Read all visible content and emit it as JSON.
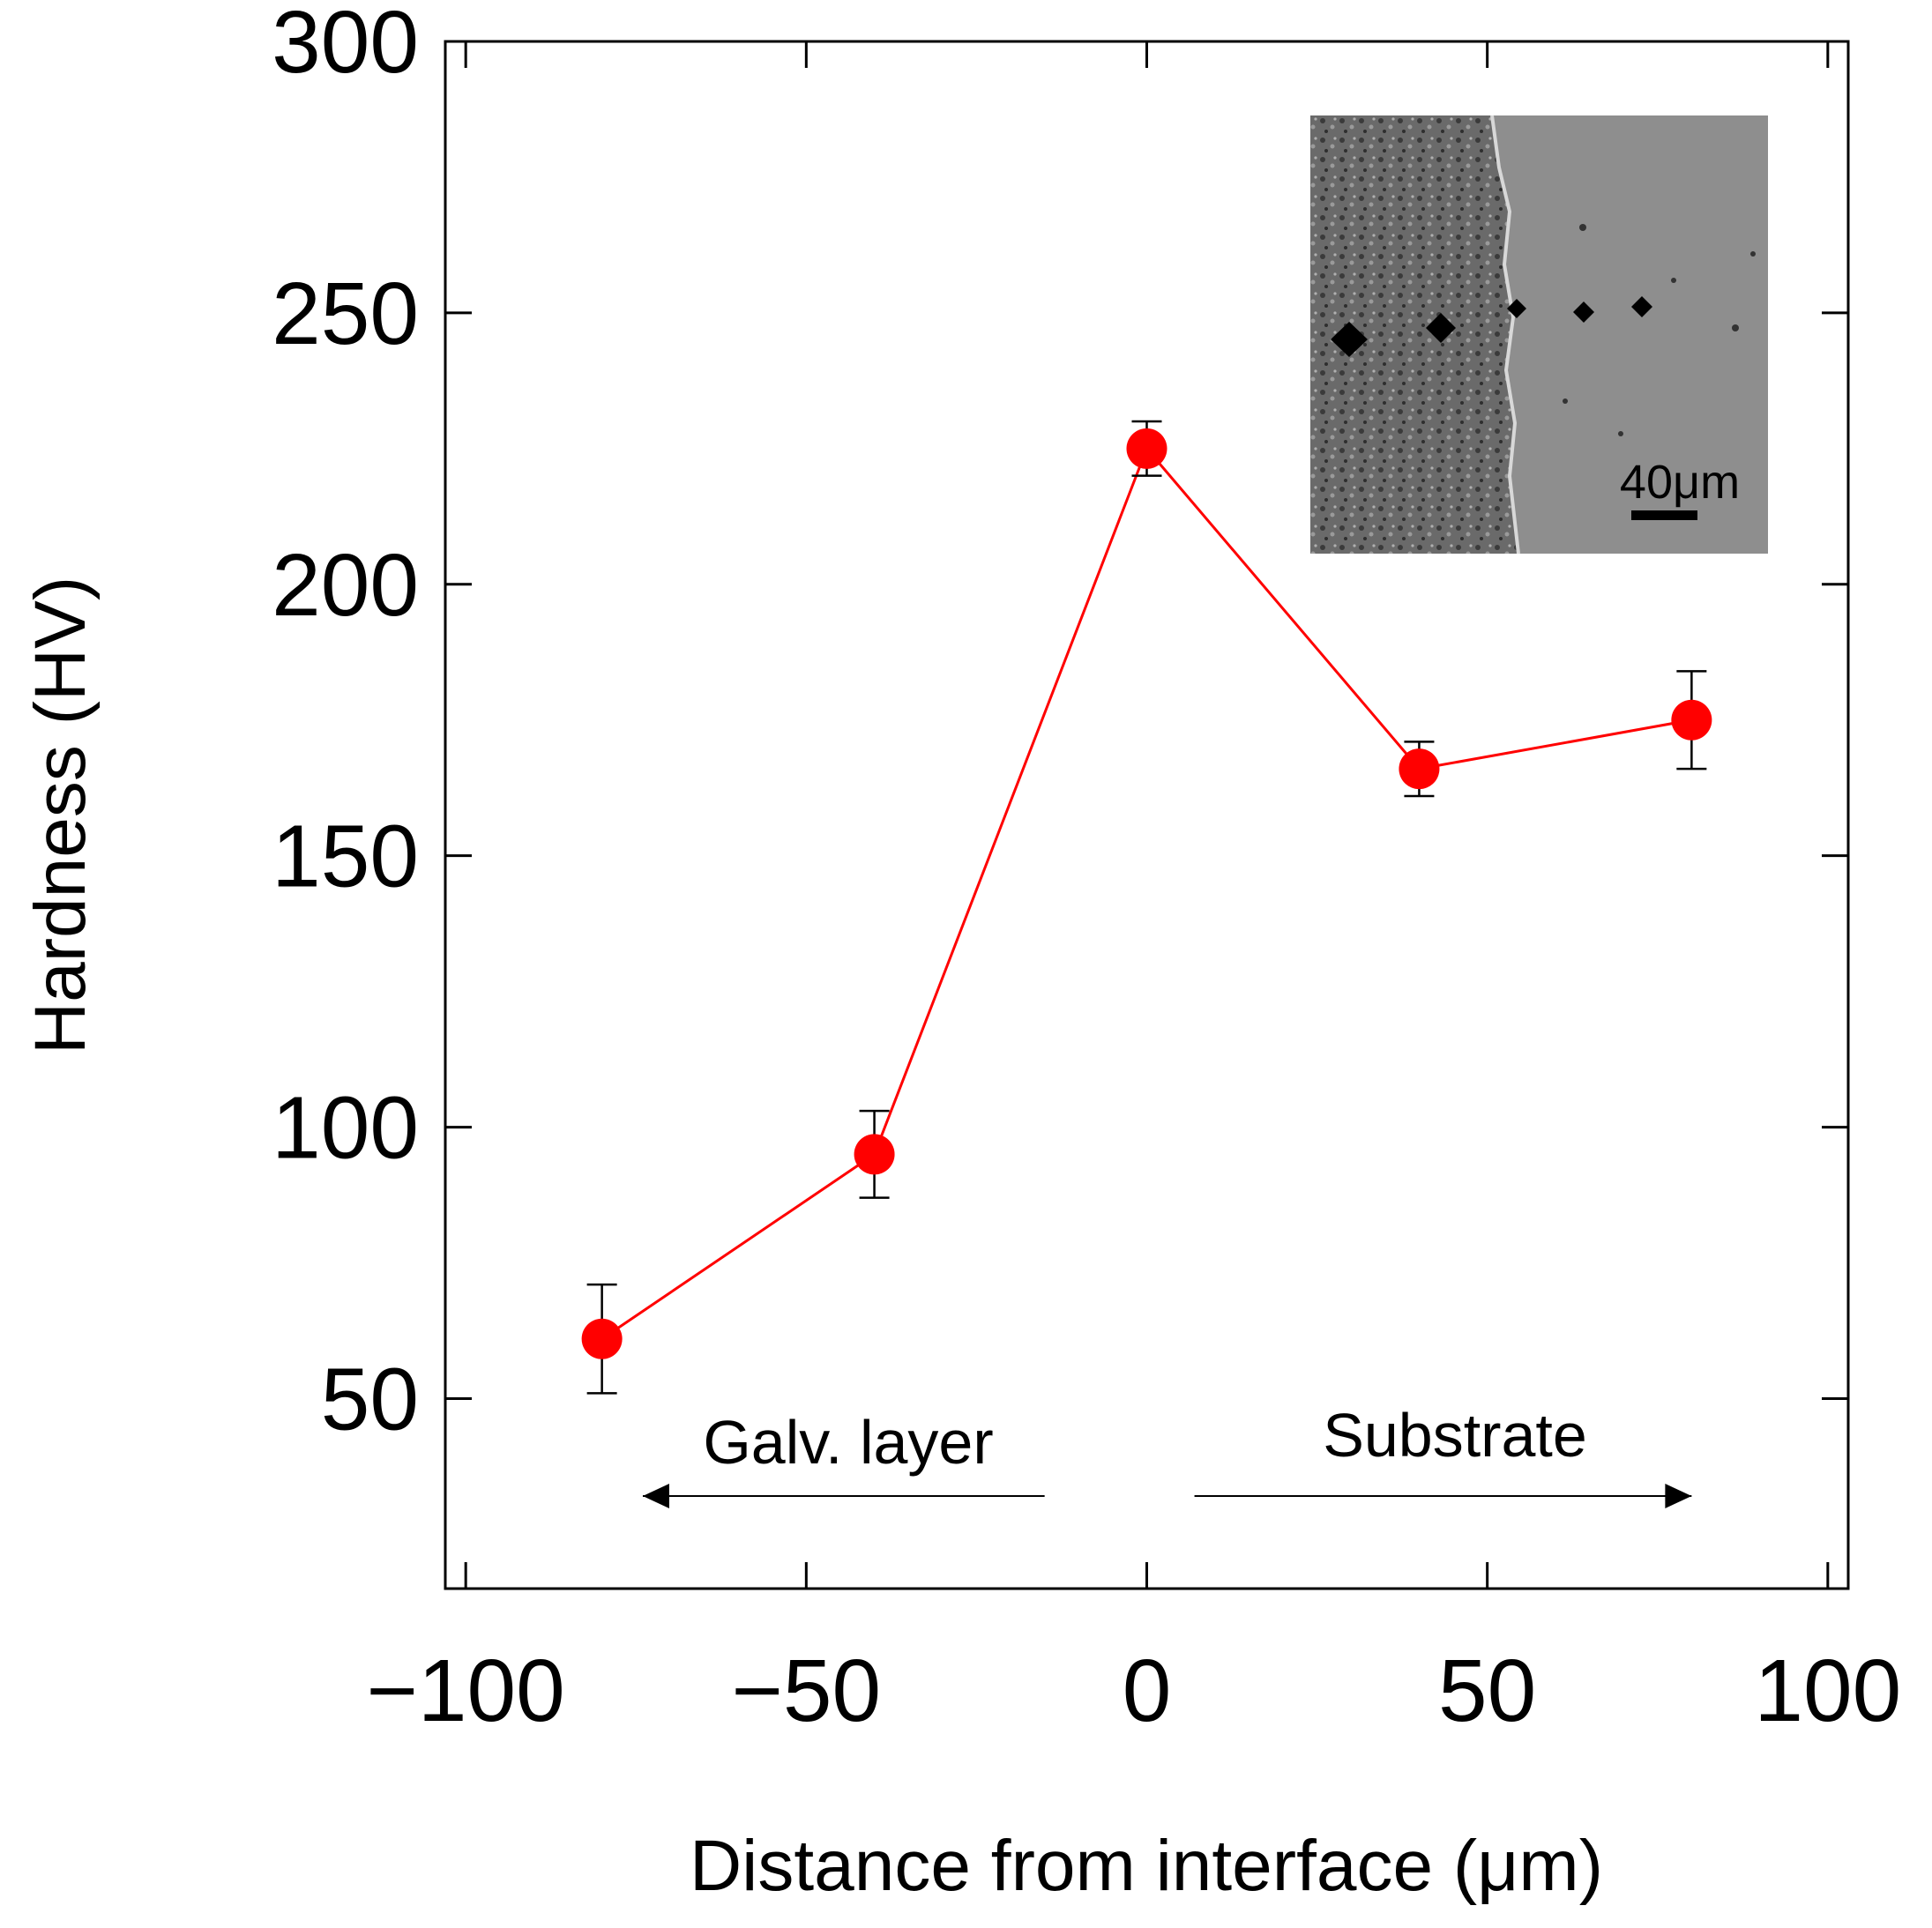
{
  "chart_data": {
    "type": "line",
    "title": "",
    "xlabel": "Distance from interface (μm)",
    "ylabel": "Hardness (HV)",
    "xlim": [
      -103,
      103
    ],
    "ylim": [
      15,
      300
    ],
    "xticks": [
      -100,
      -50,
      0,
      50,
      100
    ],
    "xtick_labels": [
      "−100",
      "−50",
      "0",
      "50",
      "100"
    ],
    "yticks": [
      50,
      100,
      150,
      200,
      250,
      300
    ],
    "ytick_labels": [
      "50",
      "100",
      "150",
      "200",
      "250",
      "300"
    ],
    "grid": false,
    "series": [
      {
        "name": "Hardness",
        "color": "#ff0000",
        "x": [
          -80,
          -40,
          0,
          40,
          80
        ],
        "y": [
          61,
          95,
          225,
          166,
          175
        ],
        "error": [
          10,
          8,
          5,
          5,
          9
        ]
      }
    ],
    "annotations": [
      {
        "text": "Galv. layer",
        "direction": "left",
        "x_from": -15,
        "x_to": -74
      },
      {
        "text": "Substrate",
        "direction": "right",
        "x_from": 7,
        "x_to": 80
      }
    ],
    "inset": {
      "description_icon": "micrograph-image",
      "scale_bar_label": "40μm"
    }
  }
}
